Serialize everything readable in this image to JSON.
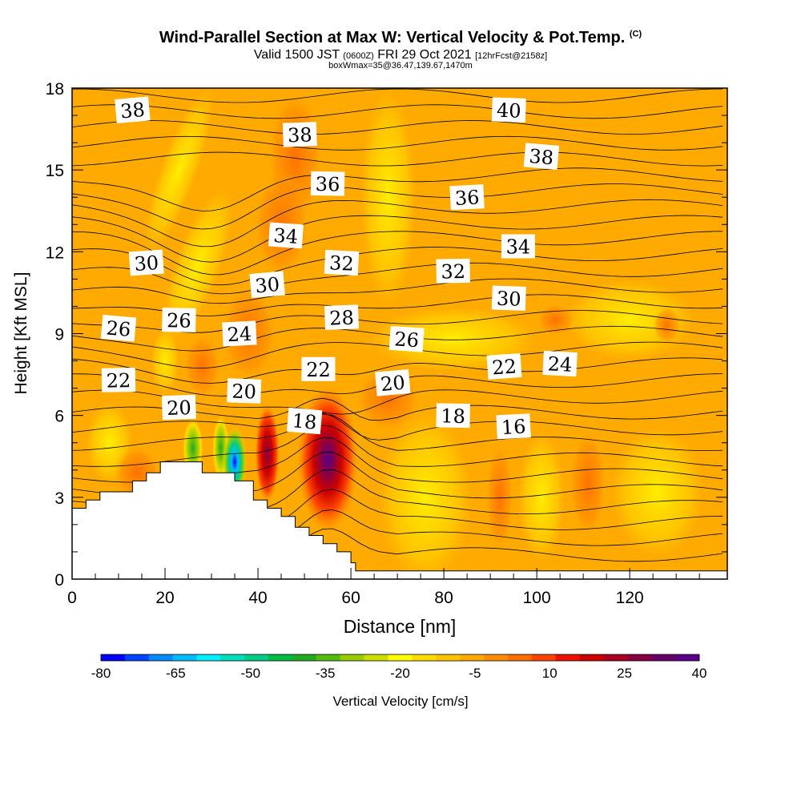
{
  "header": {
    "title": "Wind-Parallel Section at Max W: Vertical Velocity & Pot.Temp.",
    "copyright": "(C)",
    "valid_a": "Valid 1500 JST",
    "valid_z": "(0600Z)",
    "valid_b": "FRI 29 Oct 2021",
    "valid_c": "[12hrFcst@2158z]",
    "subline": "boxWmax=35@36.47,139.67,1470m"
  },
  "chart_data": {
    "type": "heatmap",
    "xlabel": "Distance [nm]",
    "ylabel": "Height [Kft MSL]",
    "xlim": [
      0,
      141
    ],
    "ylim": [
      0,
      18
    ],
    "x_ticks": [
      "0",
      "20",
      "40",
      "60",
      "80",
      "100",
      "120"
    ],
    "y_ticks": [
      "0",
      "3",
      "6",
      "9",
      "12",
      "15",
      "18"
    ],
    "colorbar": {
      "label": "Vertical Velocity [cm/s]",
      "tick_labels": [
        "-80",
        "-65",
        "-50",
        "-35",
        "-20",
        "-5",
        "10",
        "25",
        "40"
      ],
      "colors": [
        "#0000ff",
        "#0044ff",
        "#0088ff",
        "#00bbff",
        "#00eeff",
        "#00ddbb",
        "#00cc88",
        "#00bb44",
        "#22aa22",
        "#55bb11",
        "#99cc00",
        "#ccdd00",
        "#ffff00",
        "#ffdd00",
        "#ffc400",
        "#ffaa00",
        "#ff8c00",
        "#ff6e00",
        "#ff4400",
        "#ee1100",
        "#cc0000",
        "#aa0022",
        "#880044",
        "#660066",
        "#5a0088"
      ]
    },
    "terrain_kft": [
      [
        0,
        2.6
      ],
      [
        3,
        2.6
      ],
      [
        3,
        2.9
      ],
      [
        6,
        2.9
      ],
      [
        6,
        3.2
      ],
      [
        13,
        3.2
      ],
      [
        13,
        3.6
      ],
      [
        16,
        3.6
      ],
      [
        16,
        3.9
      ],
      [
        19,
        3.9
      ],
      [
        19,
        4.3
      ],
      [
        28,
        4.3
      ],
      [
        28,
        3.9
      ],
      [
        35,
        3.9
      ],
      [
        35,
        3.6
      ],
      [
        39,
        3.6
      ],
      [
        39,
        2.9
      ],
      [
        42,
        2.9
      ],
      [
        42,
        2.6
      ],
      [
        45,
        2.6
      ],
      [
        45,
        2.3
      ],
      [
        48,
        2.3
      ],
      [
        48,
        1.9
      ],
      [
        51,
        1.9
      ],
      [
        51,
        1.6
      ],
      [
        54,
        1.6
      ],
      [
        54,
        1.3
      ],
      [
        57,
        1.3
      ],
      [
        57,
        1.0
      ],
      [
        60,
        1.0
      ],
      [
        60,
        0.6
      ],
      [
        61,
        0.6
      ],
      [
        61,
        0.3
      ],
      [
        141,
        0.3
      ]
    ],
    "w_features": [
      {
        "x": 55,
        "y": 4.4,
        "w_cms": 40,
        "note": "updraft max"
      },
      {
        "x": 42,
        "y": 4.6,
        "w_cms": 30
      },
      {
        "x": 35,
        "y": 4.3,
        "w_cms": -80,
        "note": "downdraft min"
      },
      {
        "x": 32,
        "y": 4.8,
        "w_cms": -35
      },
      {
        "x": 26,
        "y": 4.8,
        "w_cms": -30
      },
      {
        "x": 23,
        "y": 15.0,
        "w_cms": -18
      },
      {
        "x": 78,
        "y": 3.2,
        "w_cms": -15
      }
    ],
    "theta_contour_labels": [
      {
        "value": "38",
        "x": 13,
        "y": 17.2
      },
      {
        "value": "40",
        "x": 94,
        "y": 17.2
      },
      {
        "value": "38",
        "x": 49,
        "y": 16.3
      },
      {
        "value": "38",
        "x": 101,
        "y": 15.5
      },
      {
        "value": "36",
        "x": 55,
        "y": 14.5
      },
      {
        "value": "36",
        "x": 85,
        "y": 14.0
      },
      {
        "value": "34",
        "x": 46,
        "y": 12.6
      },
      {
        "value": "34",
        "x": 96,
        "y": 12.2
      },
      {
        "value": "30",
        "x": 16,
        "y": 11.6
      },
      {
        "value": "32",
        "x": 58,
        "y": 11.6
      },
      {
        "value": "32",
        "x": 82,
        "y": 11.3
      },
      {
        "value": "30",
        "x": 42,
        "y": 10.8
      },
      {
        "value": "30",
        "x": 94,
        "y": 10.3
      },
      {
        "value": "28",
        "x": 58,
        "y": 9.6
      },
      {
        "value": "26",
        "x": 10,
        "y": 9.2
      },
      {
        "value": "26",
        "x": 23,
        "y": 9.5
      },
      {
        "value": "24",
        "x": 36,
        "y": 9.0
      },
      {
        "value": "26",
        "x": 72,
        "y": 8.8
      },
      {
        "value": "22",
        "x": 53,
        "y": 7.7
      },
      {
        "value": "22",
        "x": 93,
        "y": 7.8
      },
      {
        "value": "24",
        "x": 105,
        "y": 7.9
      },
      {
        "value": "22",
        "x": 10,
        "y": 7.3
      },
      {
        "value": "20",
        "x": 69,
        "y": 7.2
      },
      {
        "value": "20",
        "x": 37,
        "y": 6.9
      },
      {
        "value": "20",
        "x": 23,
        "y": 6.3
      },
      {
        "value": "18",
        "x": 50,
        "y": 5.8
      },
      {
        "value": "18",
        "x": 82,
        "y": 6.0
      },
      {
        "value": "16",
        "x": 95,
        "y": 5.6
      }
    ]
  }
}
